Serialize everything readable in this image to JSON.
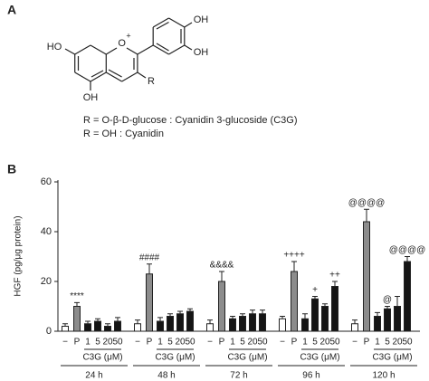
{
  "panel_a": {
    "label": "A",
    "structure": {
      "labels": [
        "HO",
        "O",
        "+",
        "R",
        "OH",
        "OH",
        "OH"
      ]
    },
    "definitions": [
      "R = O-β-D-glucose : Cyanidin 3-glucoside (C3G)",
      "R = OH : Cyanidin"
    ]
  },
  "panel_b": {
    "label": "B"
  },
  "chart_data": {
    "type": "bar",
    "y_label": "HGF (pg/μg protein)",
    "categories": [
      "24 h",
      "48 h",
      "72 h",
      "96 h",
      "120 h"
    ],
    "dose_label": "C3G (μM)",
    "ylim": [
      0,
      60
    ],
    "yticks": [
      0,
      20,
      40,
      60
    ],
    "series": [
      {
        "name": "−",
        "color": "#ffffff",
        "values": [
          2,
          3,
          3,
          5,
          3
        ],
        "errors": [
          1,
          1.5,
          1.5,
          1,
          1.5
        ]
      },
      {
        "name": "P",
        "color": "#8c8c8c",
        "values": [
          10,
          23,
          20,
          24,
          44
        ],
        "errors": [
          1.5,
          4,
          4,
          4,
          5
        ],
        "annotations": [
          "****",
          "####",
          "&&&&",
          "++++",
          "@@@@"
        ]
      },
      {
        "name": "1",
        "color": "#151515",
        "values": [
          3,
          4,
          5,
          5,
          6
        ],
        "errors": [
          1,
          1.5,
          1,
          2,
          1.5
        ]
      },
      {
        "name": "5",
        "color": "#151515",
        "values": [
          4,
          6,
          6,
          13,
          9
        ],
        "errors": [
          1,
          1,
          1,
          1,
          1
        ],
        "annotations": [
          null,
          null,
          null,
          "+",
          "@"
        ]
      },
      {
        "name": "20",
        "color": "#151515",
        "values": [
          2,
          7,
          7,
          10,
          10
        ],
        "errors": [
          1,
          1,
          1.5,
          1,
          4
        ]
      },
      {
        "name": "50",
        "color": "#151515",
        "values": [
          4,
          8,
          7,
          18,
          28
        ],
        "errors": [
          1.5,
          1,
          1.5,
          2,
          2
        ],
        "annotations": [
          null,
          null,
          null,
          "++",
          "@@@@"
        ]
      }
    ]
  }
}
